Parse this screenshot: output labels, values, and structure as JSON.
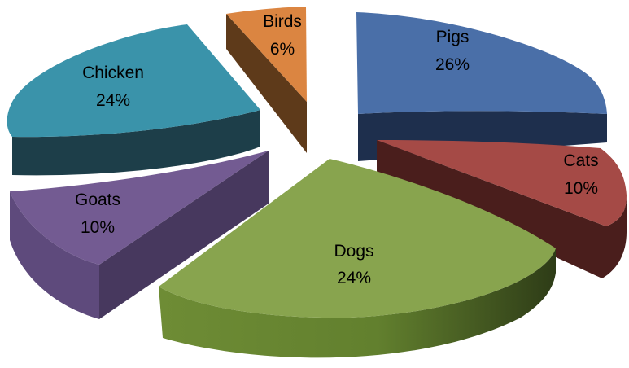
{
  "chart_data": {
    "type": "pie",
    "variant": "3d-exploded",
    "title": "",
    "legend": "none",
    "slices": [
      {
        "name": "Pigs",
        "value": 26,
        "label": "26%",
        "color": "#4A6FA8"
      },
      {
        "name": "Cats",
        "value": 10,
        "label": "10%",
        "color": "#A54A46"
      },
      {
        "name": "Dogs",
        "value": 24,
        "label": "24%",
        "color": "#88A44E"
      },
      {
        "name": "Goats",
        "value": 10,
        "label": "10%",
        "color": "#735B92"
      },
      {
        "name": "Chicken",
        "value": 24,
        "label": "24%",
        "color": "#3A93AA"
      },
      {
        "name": "Birds",
        "value": 6,
        "label": "6%",
        "color": "#DB8541"
      }
    ]
  }
}
